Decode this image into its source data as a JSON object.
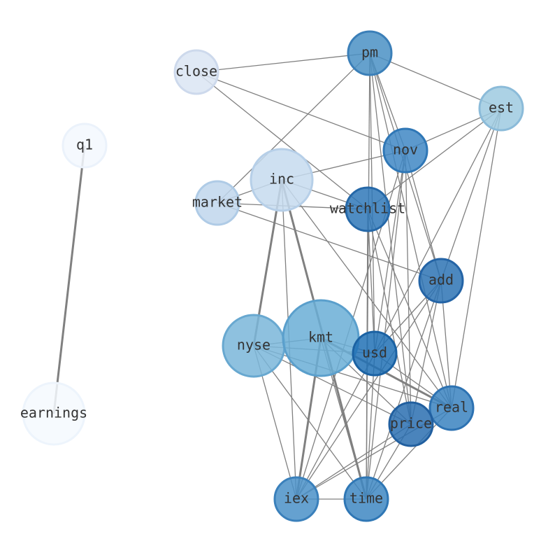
{
  "nodes": [
    {
      "label": "pm"
    },
    {
      "label": "close"
    },
    {
      "label": "est"
    },
    {
      "label": "q1"
    },
    {
      "label": "nov"
    },
    {
      "label": "inc"
    },
    {
      "label": "market"
    },
    {
      "label": "watchlist"
    },
    {
      "label": "add"
    },
    {
      "label": "nyse"
    },
    {
      "label": "kmt"
    },
    {
      "label": "usd"
    },
    {
      "label": "real"
    },
    {
      "label": "price"
    },
    {
      "label": "earnings"
    },
    {
      "label": "iex"
    },
    {
      "label": "time"
    }
  ]
}
